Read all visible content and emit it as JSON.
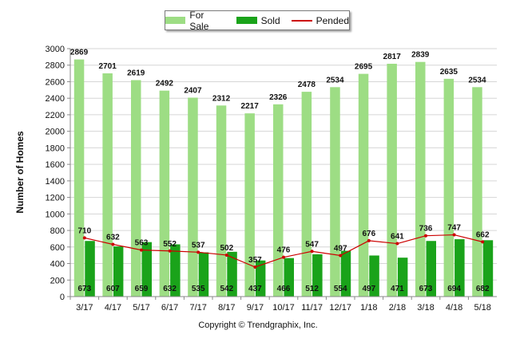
{
  "chart_data": {
    "type": "bar",
    "categories": [
      "3/17",
      "4/17",
      "5/17",
      "6/17",
      "7/17",
      "8/17",
      "9/17",
      "10/17",
      "11/17",
      "12/17",
      "1/18",
      "2/18",
      "3/18",
      "4/18",
      "5/18"
    ],
    "series": [
      {
        "name": "For Sale",
        "type": "bar",
        "color": "#9ddd84",
        "values": [
          2869,
          2701,
          2619,
          2492,
          2407,
          2312,
          2217,
          2326,
          2478,
          2534,
          2695,
          2817,
          2839,
          2635,
          2534
        ]
      },
      {
        "name": "Sold",
        "type": "bar",
        "color": "#1aa31a",
        "values": [
          673,
          607,
          659,
          632,
          535,
          542,
          437,
          466,
          512,
          554,
          497,
          471,
          673,
          694,
          682
        ]
      },
      {
        "name": "Pended",
        "type": "line",
        "color": "#cc0000",
        "values": [
          710,
          632,
          563,
          552,
          537,
          502,
          357,
          476,
          547,
          497,
          676,
          641,
          736,
          747,
          662
        ]
      }
    ],
    "ylabel": "Number of Homes",
    "ylim": [
      0,
      3000
    ],
    "yticks": [
      0,
      200,
      400,
      600,
      800,
      1000,
      1200,
      1400,
      1600,
      1800,
      2000,
      2200,
      2400,
      2600,
      2800,
      3000
    ],
    "grid": true,
    "legend_position": "top-center"
  },
  "footer": "Copyright © Trendgraphix, Inc."
}
